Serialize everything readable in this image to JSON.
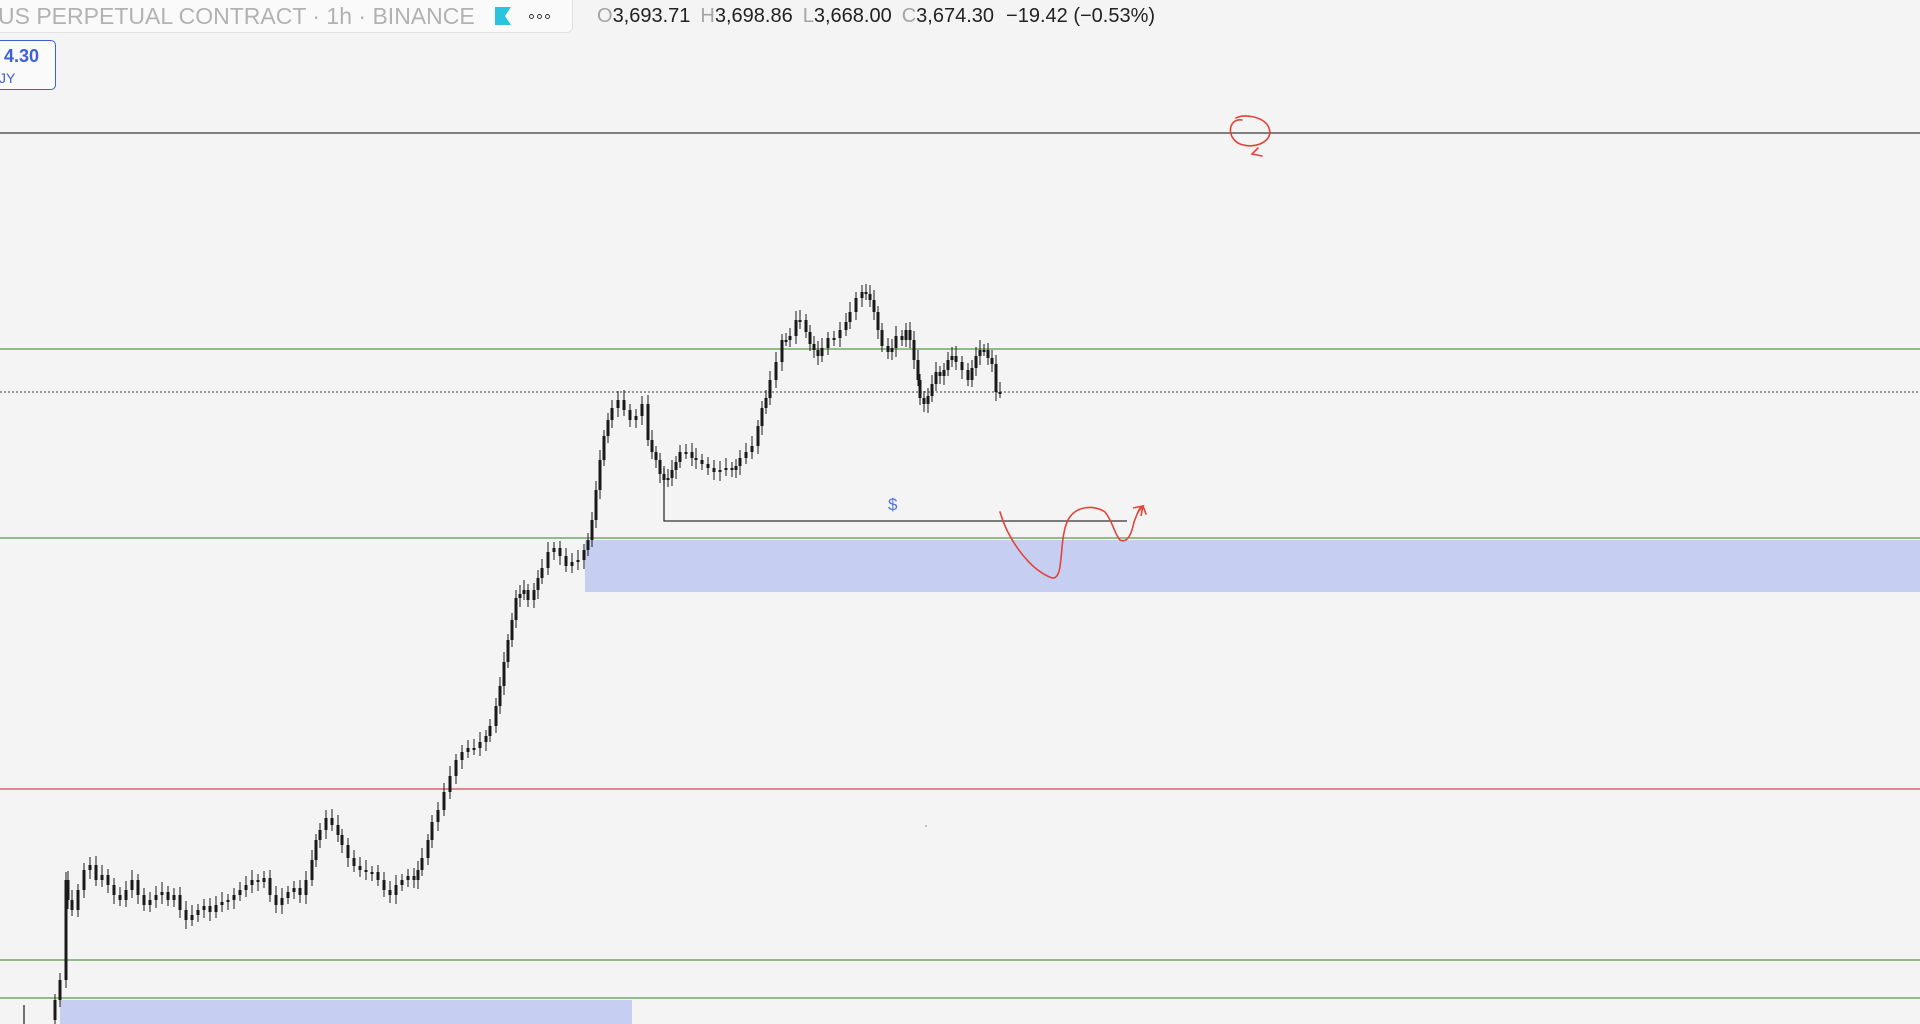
{
  "header": {
    "symbol_title": "US PERPETUAL CONTRACT · 1h · BINANCE",
    "ohlc": {
      "open_key": "O",
      "open": "3,693.71",
      "high_key": "H",
      "high": "3,698.86",
      "low_key": "L",
      "low": "3,668.00",
      "close_key": "C",
      "close": "3,674.30",
      "change": "−19.42 (−0.53%)"
    }
  },
  "price_box": {
    "value": "4.30",
    "label": "JY"
  },
  "annotations": {
    "dollar_label": "$"
  },
  "colors": {
    "background": "#f4f4f4",
    "candle": "#1a1a1a",
    "green_level": "#5a9a4a",
    "red_level": "#d9425a",
    "zone_fill": "#c6cff2",
    "drawing_red": "#e0453a",
    "accent_blue": "#3f5fd6"
  },
  "icons": [
    "flag-icon",
    "more-icon"
  ]
}
